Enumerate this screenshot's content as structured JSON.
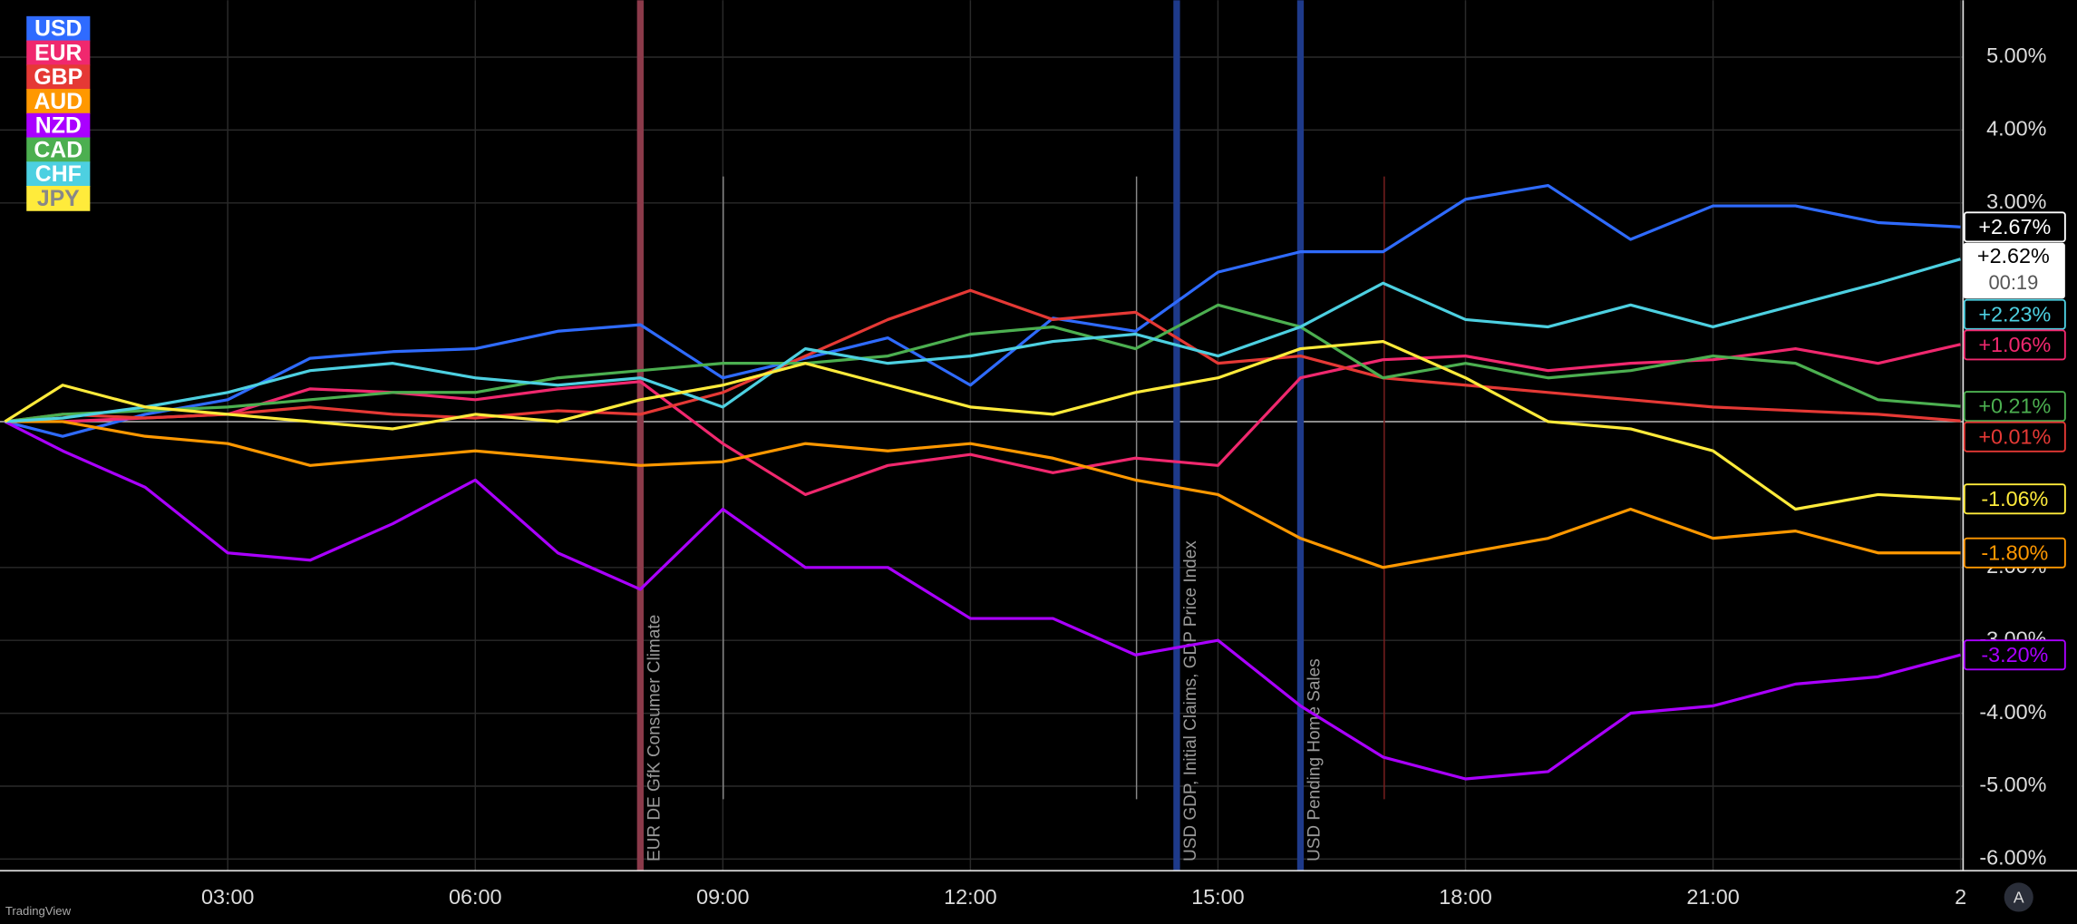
{
  "chart_data": {
    "type": "line",
    "x": [
      0.3,
      1,
      2,
      3,
      4,
      5,
      6,
      7,
      8,
      9,
      10,
      11,
      12,
      13,
      14,
      15,
      16,
      17,
      18,
      19,
      20,
      21,
      22,
      23,
      24
    ],
    "xlim": [
      0.24,
      24.03
    ],
    "xticks": [
      {
        "value": 3,
        "label": "03:00"
      },
      {
        "value": 6,
        "label": "06:00"
      },
      {
        "value": 9,
        "label": "09:00"
      },
      {
        "value": 12,
        "label": "12:00"
      },
      {
        "value": 15,
        "label": "15:00"
      },
      {
        "value": 18,
        "label": "18:00"
      },
      {
        "value": 21,
        "label": "21:00"
      },
      {
        "value": 24,
        "label": "2"
      }
    ],
    "ylim": [
      -6.16,
      5.78
    ],
    "yticks": [
      {
        "value": 5,
        "label": "5.00%"
      },
      {
        "value": 4,
        "label": "4.00%"
      },
      {
        "value": 3,
        "label": "3.00%"
      },
      {
        "value": -2,
        "label": "-2.00%"
      },
      {
        "value": -3,
        "label": "-3.00%"
      },
      {
        "value": -4,
        "label": "-4.00%"
      },
      {
        "value": -5,
        "label": "-5.00%"
      },
      {
        "value": -6,
        "label": "-6.00%"
      }
    ],
    "grid": true,
    "series": [
      {
        "name": "USD",
        "color": "#2f6bff",
        "tag_color": "#ffffff",
        "values": [
          0,
          -0.2,
          0.1,
          0.3,
          0.87,
          0.96,
          1.0,
          1.24,
          1.33,
          0.6,
          0.87,
          1.15,
          0.5,
          1.42,
          1.24,
          2.05,
          2.33,
          2.33,
          3.05,
          3.24,
          2.5,
          2.96,
          2.96,
          2.73,
          2.67
        ],
        "end_value": {
          "value": 2.67,
          "label": "+2.67%"
        }
      },
      {
        "name": "EUR",
        "color": "#f0286e",
        "tag_color": "#f0286e",
        "values": [
          0,
          0,
          0.05,
          0.1,
          0.45,
          0.4,
          0.3,
          0.45,
          0.55,
          -0.3,
          -1.0,
          -0.6,
          -0.45,
          -0.7,
          -0.5,
          -0.6,
          0.6,
          0.85,
          0.9,
          0.7,
          0.8,
          0.85,
          1.0,
          0.8,
          1.06
        ],
        "end_value": {
          "value": 1.06,
          "label": "+1.06%"
        }
      },
      {
        "name": "GBP",
        "color": "#e53935",
        "tag_color": "#e53935",
        "values": [
          0,
          0.1,
          0.05,
          0.1,
          0.2,
          0.1,
          0.05,
          0.15,
          0.1,
          0.4,
          0.9,
          1.4,
          1.8,
          1.4,
          1.5,
          0.8,
          0.9,
          0.6,
          0.5,
          0.4,
          0.3,
          0.2,
          0.15,
          0.1,
          0.01
        ],
        "end_value": {
          "value": 0.01,
          "label": "+0.01%"
        }
      },
      {
        "name": "AUD",
        "color": "#ff9800",
        "tag_color": "#ff9800",
        "values": [
          0,
          0,
          -0.2,
          -0.3,
          -0.6,
          -0.5,
          -0.4,
          -0.5,
          -0.6,
          -0.55,
          -0.3,
          -0.4,
          -0.3,
          -0.5,
          -0.8,
          -1.0,
          -1.6,
          -2.0,
          -1.8,
          -1.6,
          -1.2,
          -1.6,
          -1.5,
          -1.8,
          -1.8
        ],
        "end_value": {
          "value": -1.8,
          "label": "-1.80%"
        }
      },
      {
        "name": "NZD",
        "color": "#aa00ff",
        "tag_color": "#aa00ff",
        "values": [
          0,
          -0.4,
          -0.9,
          -1.8,
          -1.9,
          -1.4,
          -0.8,
          -1.8,
          -2.3,
          -1.2,
          -2.0,
          -2.0,
          -2.7,
          -2.7,
          -3.2,
          -3.0,
          -3.9,
          -4.6,
          -4.9,
          -4.8,
          -4.0,
          -3.9,
          -3.6,
          -3.5,
          -3.2
        ],
        "end_value": {
          "value": -3.2,
          "label": "-3.20%"
        }
      },
      {
        "name": "CAD",
        "color": "#4caf50",
        "tag_color": "#4caf50",
        "values": [
          0,
          0.1,
          0.15,
          0.2,
          0.3,
          0.4,
          0.4,
          0.6,
          0.7,
          0.8,
          0.8,
          0.9,
          1.2,
          1.3,
          1.0,
          1.6,
          1.3,
          0.6,
          0.8,
          0.6,
          0.7,
          0.9,
          0.8,
          0.3,
          0.21
        ],
        "end_value": {
          "value": 0.21,
          "label": "+0.21%"
        }
      },
      {
        "name": "CHF",
        "color": "#4dd0e1",
        "tag_color": "#4dd0e1",
        "values": [
          0,
          0.05,
          0.2,
          0.4,
          0.7,
          0.8,
          0.6,
          0.5,
          0.6,
          0.2,
          1.0,
          0.8,
          0.9,
          1.1,
          1.2,
          0.9,
          1.3,
          1.9,
          1.4,
          1.3,
          1.6,
          1.3,
          1.6,
          1.9,
          2.23
        ],
        "end_value": {
          "value": 2.23,
          "label": "+2.23%"
        }
      },
      {
        "name": "JPY",
        "color": "#ffeb3b",
        "tag_color": "#ffeb3b",
        "values": [
          0,
          0.5,
          0.2,
          0.1,
          0,
          -0.1,
          0.1,
          0,
          0.3,
          0.5,
          0.8,
          0.5,
          0.2,
          0.1,
          0.4,
          0.6,
          1.0,
          1.1,
          0.6,
          0.0,
          -0.1,
          -0.4,
          -1.2,
          -1.0,
          -1.06
        ],
        "end_value": {
          "value": -1.06,
          "label": "-1.06%"
        }
      }
    ],
    "last_price": {
      "value": 2.62,
      "label": "+2.62%"
    },
    "countdown": "00:19",
    "events": [
      {
        "x": 8,
        "label": "EUR DE GfK Consumer Climate",
        "color": "#8b3a4a"
      },
      {
        "x": 14.5,
        "label": "USD GDP, Initial Claims, GDP Price Index",
        "color": "#1e3a8a"
      },
      {
        "x": 16,
        "label": "USD Pending Home Sales",
        "color": "#1e3a8a"
      }
    ],
    "brand": "TradingView",
    "scale_button": "A"
  }
}
